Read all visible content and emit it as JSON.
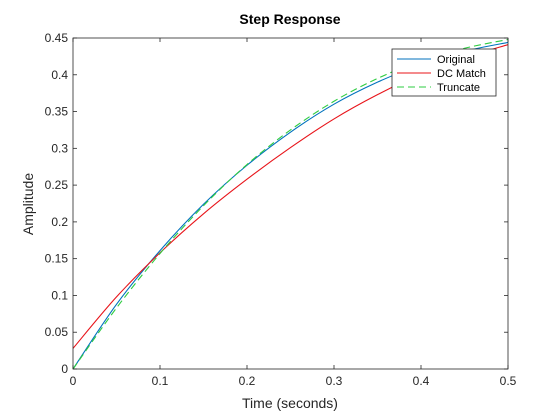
{
  "chart_data": {
    "type": "line",
    "title": "Step Response",
    "xlabel": "Time (seconds)",
    "ylabel": "Amplitude",
    "xlim": [
      0,
      0.5
    ],
    "ylim": [
      0,
      0.45
    ],
    "x_ticks": [
      0,
      0.1,
      0.2,
      0.3,
      0.4,
      0.5
    ],
    "x_tick_labels": [
      "0",
      "0.1",
      "0.2",
      "0.3",
      "0.4",
      "0.5"
    ],
    "y_ticks": [
      0,
      0.05,
      0.1,
      0.15,
      0.2,
      0.25,
      0.3,
      0.35,
      0.4,
      0.45
    ],
    "y_tick_labels": [
      "0",
      "0.05",
      "0.1",
      "0.15",
      "0.2",
      "0.25",
      "0.3",
      "0.35",
      "0.4",
      "0.45"
    ],
    "grid": false,
    "legend_position": "top-right",
    "x": [
      0,
      0.05,
      0.1,
      0.15,
      0.2,
      0.25,
      0.3,
      0.35,
      0.4,
      0.45,
      0.5
    ],
    "series": [
      {
        "name": "Original",
        "color": "#0072BD",
        "style": "solid",
        "values": [
          0.0,
          0.088,
          0.161,
          0.224,
          0.277,
          0.322,
          0.36,
          0.39,
          0.414,
          0.432,
          0.444
        ]
      },
      {
        "name": "DC Match",
        "color": "#E8141A",
        "style": "solid",
        "values": [
          0.028,
          0.098,
          0.158,
          0.211,
          0.258,
          0.301,
          0.34,
          0.373,
          0.401,
          0.423,
          0.441
        ]
      },
      {
        "name": "Truncate",
        "color": "#2ECC40",
        "style": "dashed",
        "values": [
          0.0,
          0.083,
          0.157,
          0.222,
          0.278,
          0.325,
          0.364,
          0.395,
          0.419,
          0.436,
          0.448
        ]
      }
    ]
  }
}
